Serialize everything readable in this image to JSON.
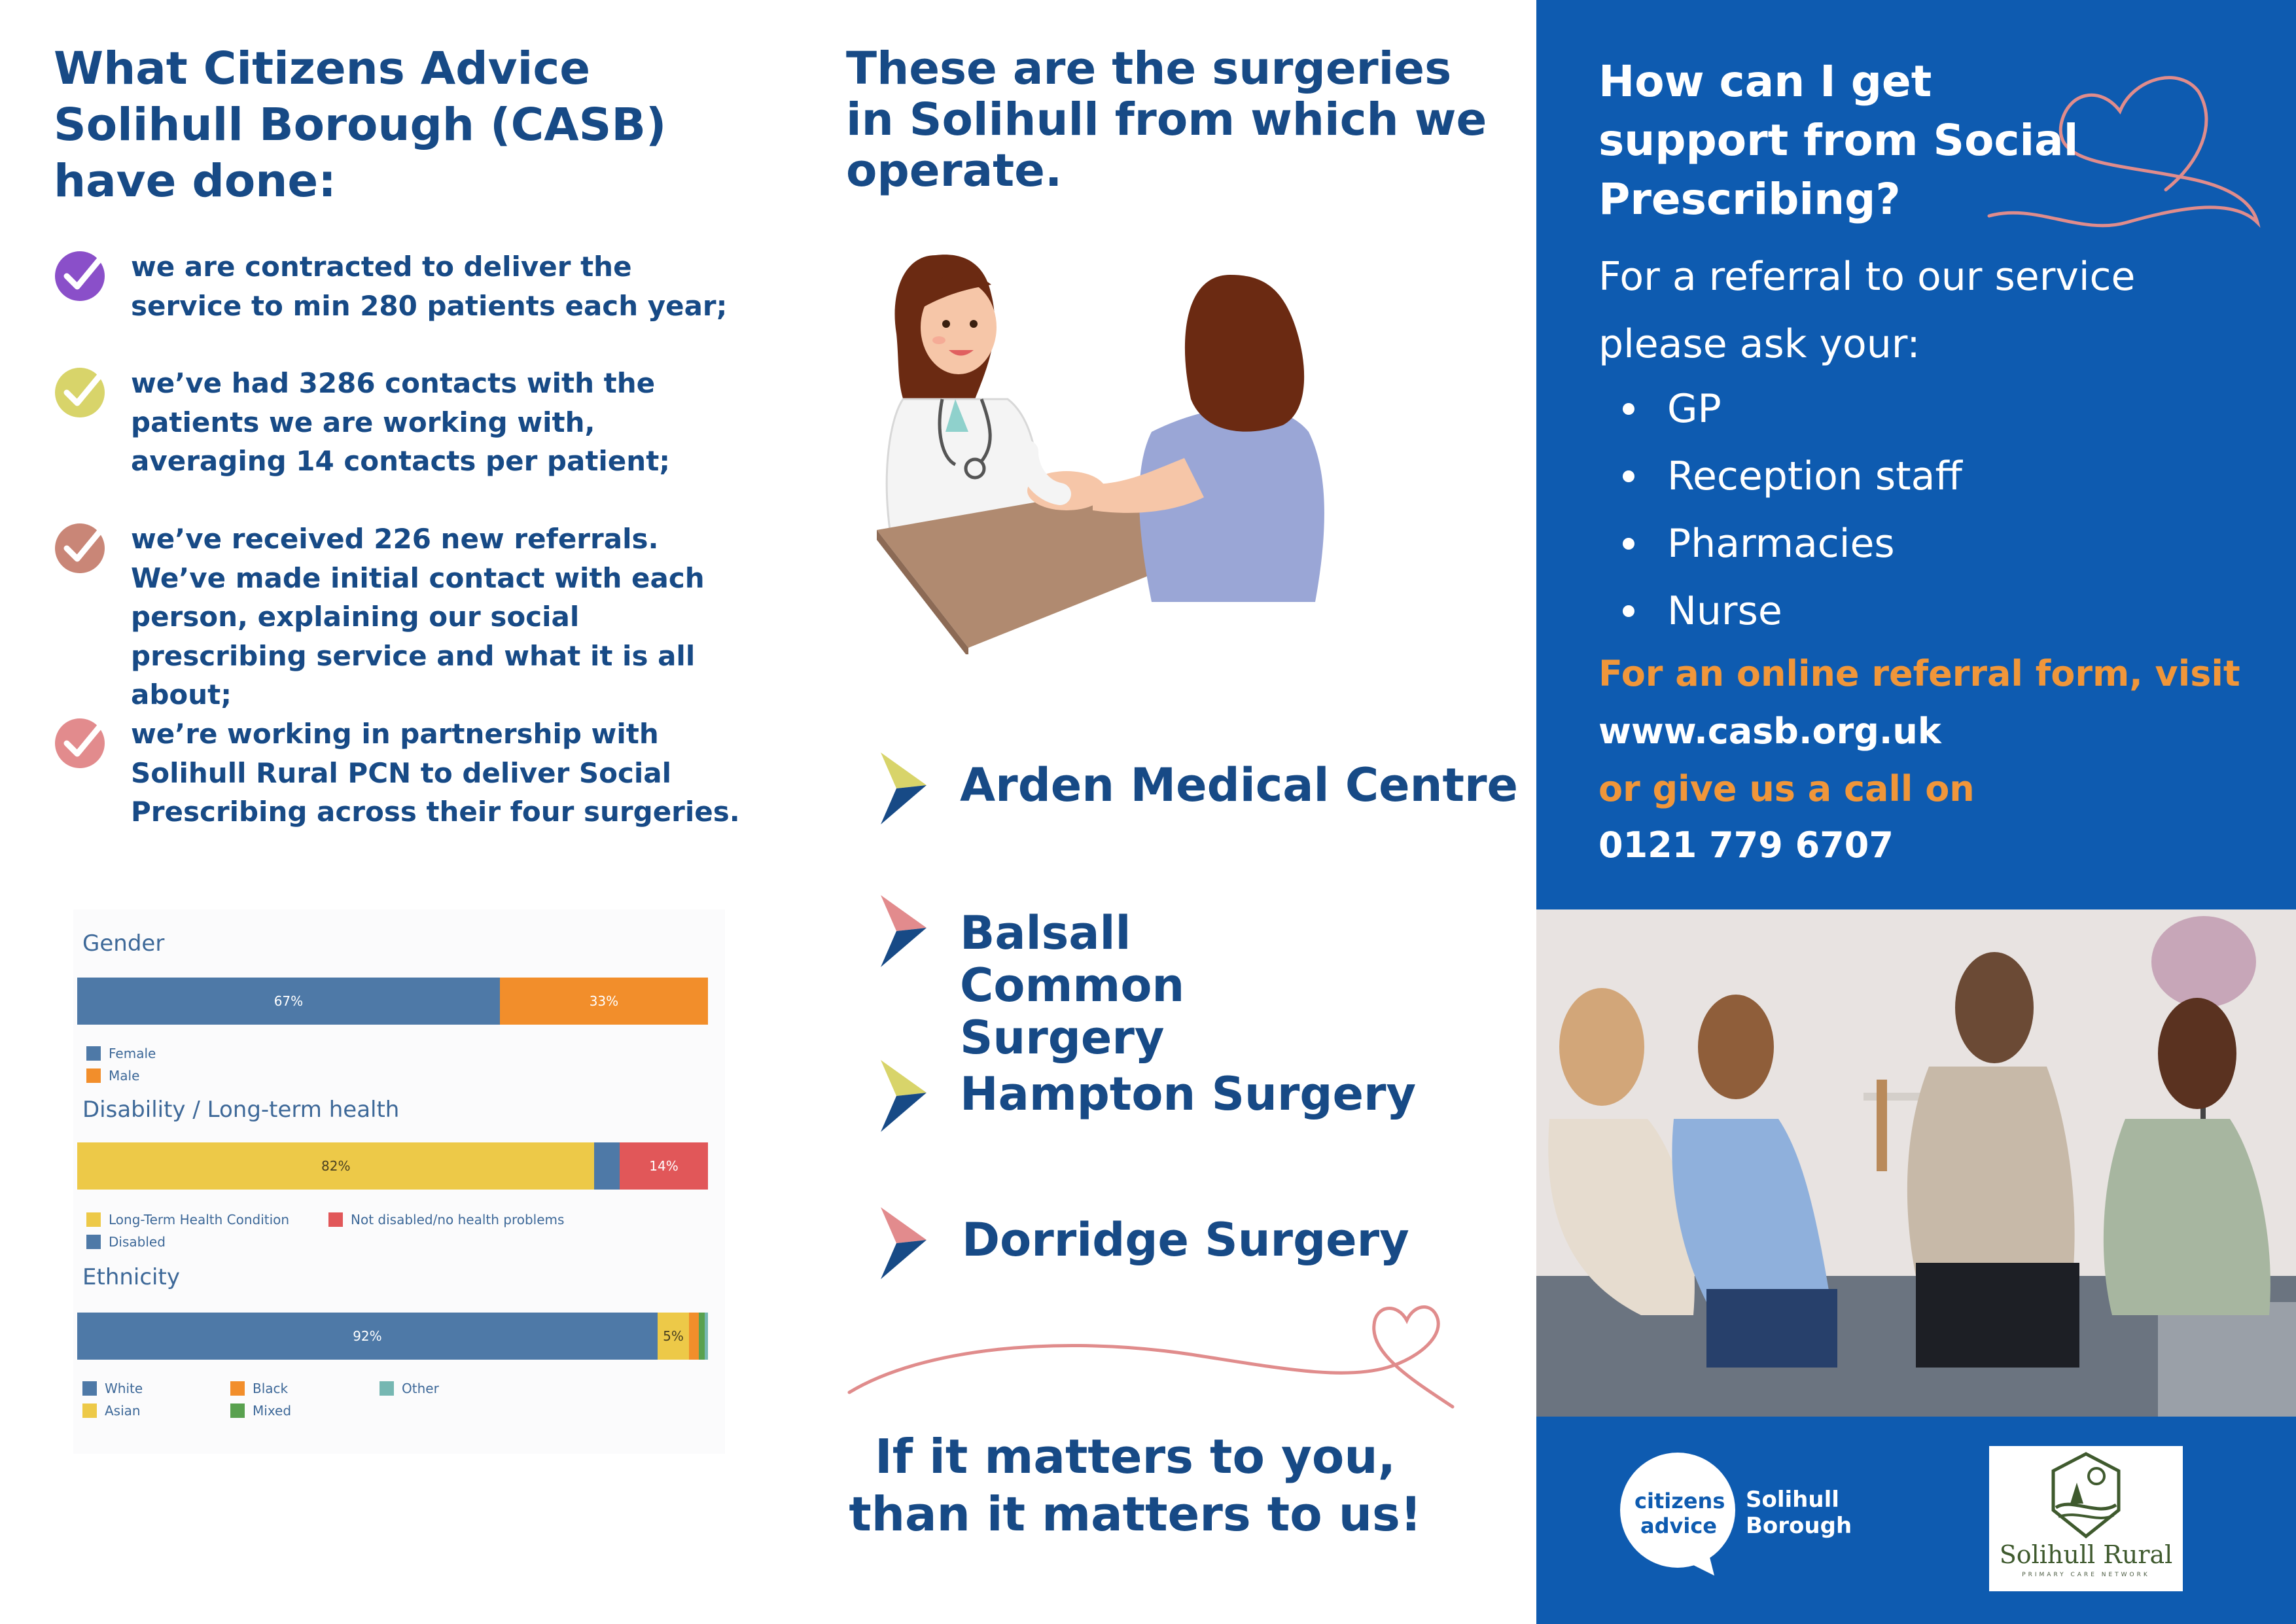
{
  "left": {
    "title": "What Citizens Advice Solihull Borough (CASB) have done:",
    "items": [
      {
        "text": "we are contracted to deliver the service to min 280 patients each year;",
        "icon": "check-icon",
        "color": "#8a4fc9"
      },
      {
        "text": "we’ve had 3286 contacts with the patients we are working with, averaging 14 contacts per patient;",
        "icon": "check-icon",
        "color": "#d8d46a"
      },
      {
        "text": "we’ve received 226 new referrals. We’ve made initial contact with each person, explaining our social prescribing service and what it is all about;",
        "icon": "check-icon",
        "color": "#c98677"
      },
      {
        "text": "we’re working in partnership with Solihull Rural PCN to deliver Social Prescribing across their four surgeries.",
        "icon": "check-icon",
        "color": "#e28b8d"
      }
    ]
  },
  "chart_data": {
    "type": "bar",
    "stacked": true,
    "orientation": "horizontal",
    "charts": [
      {
        "title": "Gender",
        "series": [
          {
            "name": "Female",
            "value": 67,
            "color": "#4e79a7",
            "label": "67%"
          },
          {
            "name": "Male",
            "value": 33,
            "color": "#f28e2b",
            "label": "33%"
          }
        ]
      },
      {
        "title": "Disability / Long-term health",
        "series": [
          {
            "name": "Long-Term Health Condition",
            "value": 82,
            "color": "#edc948",
            "label": "82%"
          },
          {
            "name": "Disabled",
            "value": 4,
            "color": "#4e79a7",
            "label": ""
          },
          {
            "name": "Not disabled/no health problems",
            "value": 14,
            "color": "#e15759",
            "label": "14%"
          }
        ]
      },
      {
        "title": "Ethnicity",
        "series": [
          {
            "name": "White",
            "value": 92,
            "color": "#4e79a7",
            "label": "92%"
          },
          {
            "name": "Asian",
            "value": 5,
            "color": "#edc948",
            "label": "5%"
          },
          {
            "name": "Black",
            "value": 1.5,
            "color": "#f28e2b",
            "label": ""
          },
          {
            "name": "Mixed",
            "value": 1,
            "color": "#59a14f",
            "label": ""
          },
          {
            "name": "Other",
            "value": 0.5,
            "color": "#76b7b2",
            "label": ""
          }
        ]
      }
    ]
  },
  "middle": {
    "title": "These are the surgeries in Solihull from which we operate.",
    "surgeries": [
      {
        "name": "Arden Medical Centre",
        "accent": "#d8d46a"
      },
      {
        "name": "Balsall Common Surgery",
        "accent": "#e28b8d"
      },
      {
        "name": "Hampton Surgery",
        "accent": "#d8d46a"
      },
      {
        "name": "Dorridge Surgery",
        "accent": "#e28b8d"
      }
    ],
    "tagline": "If it matters to you, than it matters to us!"
  },
  "right": {
    "title": "How can I get support from Social Prescribing?",
    "intro": "For a referral to our service please ask your:",
    "bullets": [
      "GP",
      "Reception staff",
      "Pharmacies",
      "Nurse"
    ],
    "online_label": "For an online referral form, visit",
    "website": "www.casb.org.uk",
    "call_label": "or give us a call on",
    "phone": "0121 779 6707",
    "panel_color": "#0e5bb0",
    "accent_color": "#f0963a"
  },
  "logos": {
    "ca_text": "citizens advice",
    "ca_org": "Solihull Borough",
    "rural_name": "Solihull Rural",
    "rural_sub": "PRIMARY CARE NETWORK"
  }
}
